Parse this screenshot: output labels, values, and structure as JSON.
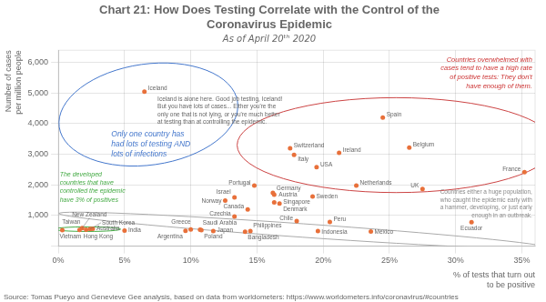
{
  "chart_data": {
    "type": "scatter",
    "title": "Chart 21: How Does Testing Correlate with the Control of the\nCoronavirus Epidemic",
    "subtitle": "As of April 20ᵗʰ 2020",
    "xlabel": "% of tests that turn out\nto be positive",
    "ylabel": "Number of cases\nper million people",
    "source": "Source: Tomas Pueyo and Genevieve Gee analysis, based on data from worldometers: https://www.worldometers.info/coronavirus/#countries",
    "color": "#e8703a",
    "labels": [
      "Iceland",
      "Switzerland",
      "Italy",
      "Ireland",
      "Spain",
      "Belgium",
      "France",
      "USA",
      "Netherlands",
      "UK",
      "Sweden",
      "Portugal",
      "Germany",
      "Austria",
      "Israel",
      "Norway",
      "Singapore",
      "Denmark",
      "Canada",
      "Czechia",
      "Chile",
      "Peru",
      "New Zealand",
      "Australia",
      "Greece",
      "South Korea",
      "Hong Kong",
      "Taiwan",
      "Vietnam",
      "India",
      "Saudi Arabia",
      "Poland",
      "Argentina",
      "Japan",
      "Philippines",
      "Bangladesh",
      "Indonesia",
      "Mexico",
      "Ecuador"
    ],
    "x": [
      0.065,
      0.175,
      0.178,
      0.212,
      0.245,
      0.265,
      0.352,
      0.195,
      0.225,
      0.275,
      0.192,
      0.148,
      0.162,
      0.163,
      0.133,
      0.126,
      0.163,
      0.167,
      0.143,
      0.133,
      0.18,
      0.205,
      0.018,
      0.026,
      0.1,
      0.024,
      0.021,
      0.016,
      0.003,
      0.05,
      0.107,
      0.108,
      0.096,
      0.117,
      0.145,
      0.141,
      0.196,
      0.236,
      0.312
    ],
    "values": [
      5050,
      3200,
      2980,
      3050,
      4200,
      3220,
      2420,
      2580,
      1980,
      1870,
      1620,
      1980,
      1740,
      1680,
      1590,
      1490,
      1430,
      1390,
      1200,
      970,
      820,
      790,
      590,
      568,
      545,
      558,
      540,
      528,
      523,
      510,
      540,
      520,
      503,
      496,
      490,
      473,
      490,
      480,
      780
    ],
    "xlim": [
      0,
      0.36
    ],
    "xticks": [
      {
        "value": 0.0,
        "label": "0%"
      },
      {
        "value": 0.05,
        "label": "5%"
      },
      {
        "value": 0.1,
        "label": "10%"
      },
      {
        "value": 0.15,
        "label": "15%"
      },
      {
        "value": 0.2,
        "label": "20%"
      },
      {
        "value": 0.25,
        "label": "25%"
      },
      {
        "value": 0.3,
        "label": "30%"
      },
      {
        "value": 0.35,
        "label": "35%"
      }
    ],
    "ylim": [
      0,
      6400
    ],
    "yticks": [
      {
        "value": 0,
        "label": ""
      },
      {
        "value": 1000,
        "label": "1,000"
      },
      {
        "value": 2000,
        "label": "2,000"
      },
      {
        "value": 3000,
        "label": "3,000"
      },
      {
        "value": 4000,
        "label": "4,000"
      },
      {
        "value": 5000,
        "label": "5,000"
      },
      {
        "value": 6000,
        "label": "6,000"
      }
    ],
    "grid": true,
    "annotations": [
      {
        "text": "Iceland is alone here. Good job testing, Iceland!\nBut you have lots of cases... Either you're the\nonly one that is not lying, or you're much better\nat testing than at controlling the epidemic.",
        "color": "#666666"
      },
      {
        "text": "Only one country has\nhad lots of testing AND\nlots of infections",
        "color": "#4477cc"
      },
      {
        "text": "The developed\ncountries that have\ncontrolled the epidemic\nhave 3% of positives",
        "color": "#44aa44"
      },
      {
        "text": "Countries overwhelmed with\ncases tend to have a high rate\nof positive tests: They don't\nhave enough of them.",
        "color": "#cc3333"
      },
      {
        "text": "Countries either a huge population,\nwho caught the epidemic early with\na hammer, developing, or just early\nenough in an outbreak.",
        "color": "#888888"
      }
    ],
    "ellipses": [
      {
        "cx": 0.068,
        "cy": 4300,
        "rx": 0.068,
        "ry": 1650,
        "angle": 8,
        "color": "#4477cc"
      },
      {
        "cx": 0.255,
        "cy": 3300,
        "rx": 0.12,
        "ry": 1550,
        "angle": 0,
        "color": "#cc4444"
      },
      {
        "cx": 0.022,
        "cy": 555,
        "rx": 0.025,
        "ry": 75,
        "angle": 0,
        "color": "#44aa44"
      },
      {
        "cx": 0.185,
        "cy": 510,
        "rx": 0.185,
        "ry": 220,
        "angle": -4,
        "color": "#aaaaaa"
      }
    ]
  }
}
